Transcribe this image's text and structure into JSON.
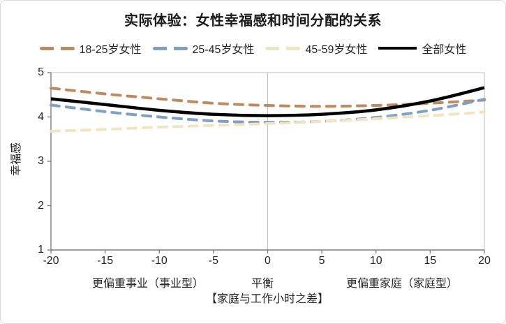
{
  "page": {
    "background": "#ffffff",
    "frame_border": "#d8d8d8"
  },
  "chart_data": {
    "type": "line",
    "title": "实际体验：女性幸福感和时间分配的关系",
    "legend_position": "top",
    "grid": "center-vertical-gridline-only",
    "x": [
      -20,
      -15,
      -10,
      -5,
      0,
      5,
      10,
      15,
      20
    ],
    "series": [
      {
        "name": "18-25岁女性",
        "color": "#BE8A5F",
        "style": "dashed",
        "values": [
          4.65,
          4.52,
          4.41,
          4.31,
          4.26,
          4.24,
          4.26,
          4.31,
          4.38
        ]
      },
      {
        "name": "25-45岁女性",
        "color": "#7F9FC4",
        "style": "dashed",
        "values": [
          4.27,
          4.12,
          4.0,
          3.91,
          3.88,
          3.9,
          3.99,
          4.15,
          4.4
        ]
      },
      {
        "name": "45-59岁女性",
        "color": "#F2E4C0",
        "style": "dashed",
        "values": [
          3.68,
          3.72,
          3.77,
          3.81,
          3.85,
          3.9,
          3.96,
          4.03,
          4.11
        ]
      },
      {
        "name": "全部女性",
        "color": "#000000",
        "style": "solid",
        "values": [
          4.41,
          4.28,
          4.15,
          4.06,
          4.03,
          4.06,
          4.16,
          4.36,
          4.66
        ]
      }
    ],
    "x_axis": {
      "range": [
        -20,
        20
      ],
      "ticks": [
        -20,
        -15,
        -10,
        -5,
        0,
        5,
        10,
        15,
        20
      ],
      "zone_labels": [
        "更偏重事业（事业型）",
        "平衡",
        "更偏重家庭（家庭型）"
      ],
      "title": "【家庭与工作小时之差】",
      "center_gridline": true
    },
    "y_axis": {
      "range": [
        1,
        5
      ],
      "ticks": [
        5,
        4,
        3,
        2,
        1
      ],
      "title": "幸福感"
    },
    "colors": {
      "axis_line": "#7F7F7F",
      "plot_border": "#BFBFBF",
      "gridline": "#BFBFBF",
      "text": "#262626"
    }
  }
}
